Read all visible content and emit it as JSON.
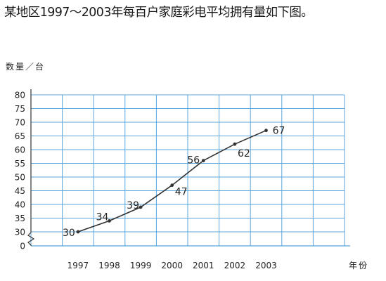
{
  "title": "某地区1997～2003年每百户家庭彩电平均拥有量如下图。",
  "chart_data": {
    "type": "line",
    "ylabel": "数量／台",
    "xlabel": "年份",
    "categories": [
      "1997",
      "1998",
      "1999",
      "2000",
      "2001",
      "2002",
      "2003"
    ],
    "values": [
      30,
      34,
      39,
      47,
      56,
      62,
      67
    ],
    "data_labels": [
      "30",
      "34",
      "39",
      "47",
      "56",
      "62",
      "67"
    ],
    "y_ticks": [
      "0",
      "30",
      "35",
      "40",
      "45",
      "50",
      "55",
      "60",
      "65",
      "70",
      "75",
      "80"
    ],
    "ylim": [
      30,
      80
    ],
    "y_axis_break": true,
    "grid": true,
    "colors": {
      "grid": "#5aa6dc",
      "line": "#333333",
      "axis": "#333333"
    }
  }
}
